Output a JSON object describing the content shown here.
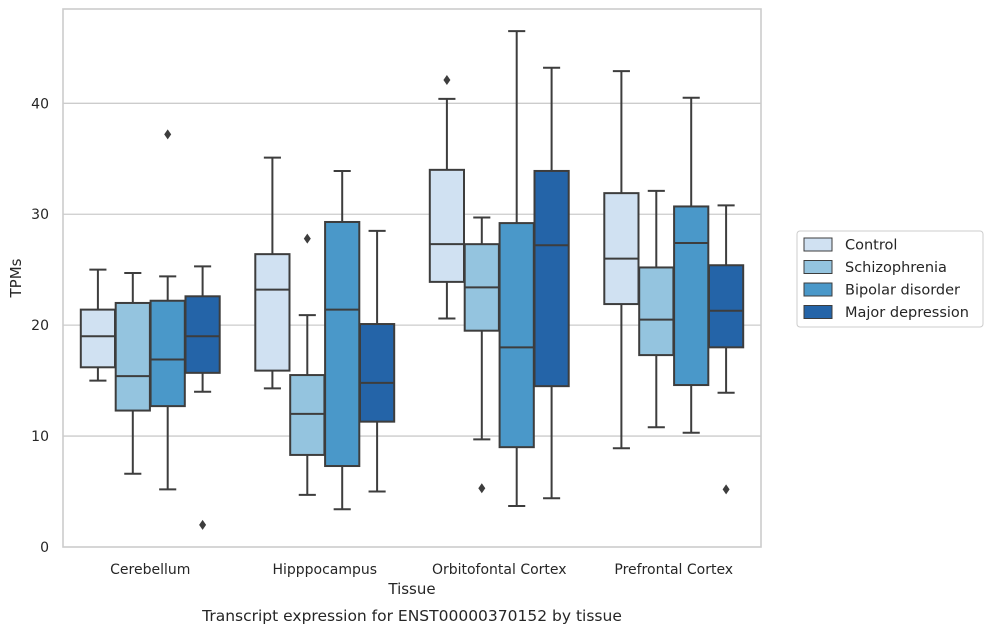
{
  "caption": "Transcript expression for ENST00000370152 by tissue",
  "chart_data": {
    "type": "box",
    "xlabel": "Tissue",
    "ylabel": "TPMs",
    "ylim": [
      0,
      48.5
    ],
    "yticks": [
      0,
      10,
      20,
      30,
      40
    ],
    "grid": "horizontal",
    "legend_position": "right",
    "categories": [
      "Cerebellum",
      "Hipppocampus",
      "Orbitofontal Cortex",
      "Prefrontal Cortex"
    ],
    "series": [
      {
        "name": "Control",
        "color": "#d0e1f2",
        "boxes": [
          {
            "whislo": 15.0,
            "q1": 16.2,
            "med": 19.0,
            "q3": 21.4,
            "whishi": 25.0,
            "fliers": []
          },
          {
            "whislo": 14.3,
            "q1": 15.9,
            "med": 23.2,
            "q3": 26.4,
            "whishi": 35.1,
            "fliers": []
          },
          {
            "whislo": 20.6,
            "q1": 23.9,
            "med": 27.3,
            "q3": 34.0,
            "whishi": 40.4,
            "fliers": [
              42.1
            ]
          },
          {
            "whislo": 8.9,
            "q1": 21.9,
            "med": 26.0,
            "q3": 31.9,
            "whishi": 42.9,
            "fliers": []
          }
        ]
      },
      {
        "name": "Schizophrenia",
        "color": "#94c4df",
        "boxes": [
          {
            "whislo": 6.6,
            "q1": 12.3,
            "med": 15.4,
            "q3": 22.0,
            "whishi": 24.7,
            "fliers": []
          },
          {
            "whislo": 4.7,
            "q1": 8.3,
            "med": 12.0,
            "q3": 15.5,
            "whishi": 20.9,
            "fliers": [
              27.8
            ]
          },
          {
            "whislo": 9.7,
            "q1": 19.5,
            "med": 23.4,
            "q3": 27.3,
            "whishi": 29.7,
            "fliers": [
              5.3
            ]
          },
          {
            "whislo": 10.8,
            "q1": 17.3,
            "med": 20.5,
            "q3": 25.2,
            "whishi": 32.1,
            "fliers": []
          }
        ]
      },
      {
        "name": "Bipolar disorder",
        "color": "#4a98c9",
        "boxes": [
          {
            "whislo": 5.2,
            "q1": 12.7,
            "med": 16.9,
            "q3": 22.2,
            "whishi": 24.4,
            "fliers": [
              37.2
            ]
          },
          {
            "whislo": 3.4,
            "q1": 7.3,
            "med": 21.4,
            "q3": 29.3,
            "whishi": 33.9,
            "fliers": []
          },
          {
            "whislo": 3.7,
            "q1": 9.0,
            "med": 18.0,
            "q3": 29.2,
            "whishi": 46.5,
            "fliers": []
          },
          {
            "whislo": 10.3,
            "q1": 14.6,
            "med": 27.4,
            "q3": 30.7,
            "whishi": 40.5,
            "fliers": []
          }
        ]
      },
      {
        "name": "Major depression",
        "color": "#2464a8",
        "boxes": [
          {
            "whislo": 14.0,
            "q1": 15.7,
            "med": 19.0,
            "q3": 22.6,
            "whishi": 25.3,
            "fliers": [
              2.0
            ]
          },
          {
            "whislo": 5.0,
            "q1": 11.3,
            "med": 14.8,
            "q3": 20.1,
            "whishi": 28.5,
            "fliers": []
          },
          {
            "whislo": 4.4,
            "q1": 14.5,
            "med": 27.2,
            "q3": 33.9,
            "whishi": 43.2,
            "fliers": []
          },
          {
            "whislo": 13.9,
            "q1": 18.0,
            "med": 21.3,
            "q3": 25.4,
            "whishi": 30.8,
            "fliers": [
              5.2
            ]
          }
        ]
      }
    ]
  }
}
